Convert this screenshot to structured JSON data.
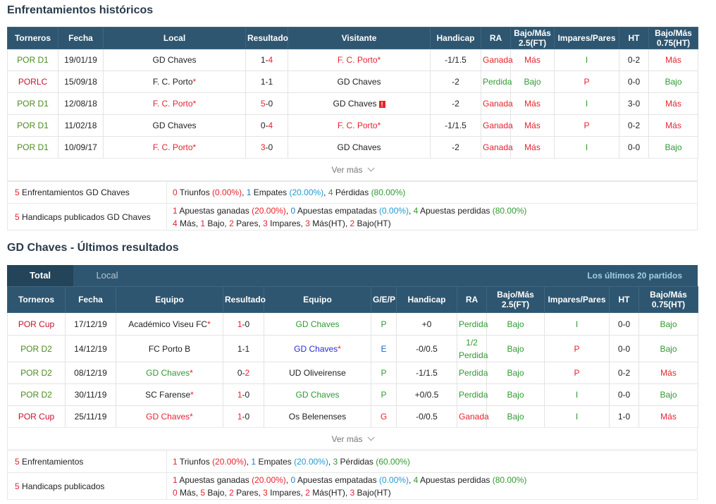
{
  "h2h": {
    "title": "Enfrentamientos históricos",
    "headers": [
      "Torneros",
      "Fecha",
      "Local",
      "Resultado",
      "Visitante",
      "Handicap",
      "RA",
      "Bajo/Más 2.5(FT)",
      "Impares/Pares",
      "HT",
      "Bajo/Más 0.75(HT)"
    ],
    "rows": [
      {
        "torneo": "POR D1",
        "fecha": "19/01/19",
        "local": "GD Chaves",
        "res_a": "1",
        "res_sep": "-",
        "res_b": "4",
        "visit": "F. C. Porto",
        "handicap": "-1/1.5",
        "ra": "Ganada",
        "ou": "Más",
        "oe": "I",
        "ht": "0-2",
        "ou_ht": "Más"
      },
      {
        "torneo": "PORLC",
        "fecha": "15/09/18",
        "local": "F. C. Porto",
        "res_a": "1",
        "res_sep": "-",
        "res_b": "1",
        "visit": "GD Chaves",
        "handicap": "-2",
        "ra": "Perdida",
        "ou": "Bajo",
        "oe": "P",
        "ht": "0-0",
        "ou_ht": "Bajo"
      },
      {
        "torneo": "POR D1",
        "fecha": "12/08/18",
        "local": "F. C. Porto",
        "res_a": "5",
        "res_sep": "-",
        "res_b": "0",
        "visit": "GD Chaves",
        "handicap": "-2",
        "ra": "Ganada",
        "ou": "Más",
        "oe": "I",
        "ht": "3-0",
        "ou_ht": "Más"
      },
      {
        "torneo": "POR D1",
        "fecha": "11/02/18",
        "local": "GD Chaves",
        "res_a": "0",
        "res_sep": "-",
        "res_b": "4",
        "visit": "F. C. Porto",
        "handicap": "-1/1.5",
        "ra": "Ganada",
        "ou": "Más",
        "oe": "P",
        "ht": "0-2",
        "ou_ht": "Más"
      },
      {
        "torneo": "POR D1",
        "fecha": "10/09/17",
        "local": "F. C. Porto",
        "res_a": "3",
        "res_sep": "-",
        "res_b": "0",
        "visit": "GD Chaves",
        "handicap": "-2",
        "ra": "Ganada",
        "ou": "Más",
        "oe": "I",
        "ht": "0-0",
        "ou_ht": "Bajo"
      }
    ],
    "more": "Ver más",
    "summary1": {
      "label_num": "5",
      "label": " Enfrentamientos GD Chaves",
      "n1": "0",
      "t1": " Triunfos ",
      "p1": "(0.00%)",
      "s1": ", ",
      "n2": "1",
      "t2": " Empates ",
      "p2": "(20.00%)",
      "s2": ", ",
      "n3": "4",
      "t3": " Pérdidas ",
      "p3": "(80.00%)"
    },
    "summary2": {
      "label_num": "5",
      "label": " Handicaps publicados GD Chaves",
      "n1": "1",
      "t1": " Apuestas ganadas ",
      "p1": "(20.00%)",
      "s1": ", ",
      "n2": "0",
      "t2": " Apuestas empatadas ",
      "p2": "(0.00%)",
      "s2": ", ",
      "n3": "4",
      "t3": " Apuestas perdidas ",
      "p3": "(80.00%)",
      "l2": [
        {
          "n": "4",
          "t": " Más, "
        },
        {
          "n": "1",
          "t": " Bajo, "
        },
        {
          "n": "2",
          "t": " Pares, "
        },
        {
          "n": "3",
          "t": " Impares, "
        },
        {
          "n": "3",
          "t": " Más(HT), "
        },
        {
          "n": "2",
          "t": " Bajo(HT)"
        }
      ]
    }
  },
  "recent": {
    "title": "GD Chaves - Últimos resultados",
    "tab_total": "Total",
    "tab_local": "Local",
    "tab_right": "Los últimos 20 partidos",
    "headers": [
      "Torneros",
      "Fecha",
      "Equipo",
      "Resultado",
      "Equipo",
      "G/E/P",
      "Handicap",
      "RA",
      "Bajo/Más 2.5(FT)",
      "Impares/Pares",
      "HT",
      "Bajo/Más 0.75(HT)"
    ],
    "rows": [
      {
        "torneo": "POR Cup",
        "fecha": "17/12/19",
        "eq1": "Académico Viseu FC",
        "res_a": "1",
        "res_sep": "-",
        "res_b": "0",
        "eq2": "GD Chaves",
        "gep": "P",
        "handicap": "+0",
        "ra": "Perdida",
        "ra2": "",
        "ou": "Bajo",
        "oe": "I",
        "ht": "0-0",
        "ou_ht": "Bajo"
      },
      {
        "torneo": "POR D2",
        "fecha": "14/12/19",
        "eq1": "FC Porto B",
        "res_a": "1",
        "res_sep": "-",
        "res_b": "1",
        "eq2": "GD Chaves",
        "gep": "E",
        "handicap": "-0/0.5",
        "ra": "1/2",
        "ra2": "Perdida",
        "ou": "Bajo",
        "oe": "P",
        "ht": "0-0",
        "ou_ht": "Bajo"
      },
      {
        "torneo": "POR D2",
        "fecha": "08/12/19",
        "eq1": "GD Chaves",
        "res_a": "0",
        "res_sep": "-",
        "res_b": "2",
        "eq2": "UD Oliveirense",
        "gep": "P",
        "handicap": "-1/1.5",
        "ra": "Perdida",
        "ra2": "",
        "ou": "Bajo",
        "oe": "P",
        "ht": "0-2",
        "ou_ht": "Más"
      },
      {
        "torneo": "POR D2",
        "fecha": "30/11/19",
        "eq1": "SC Farense",
        "res_a": "1",
        "res_sep": "-",
        "res_b": "0",
        "eq2": "GD Chaves",
        "gep": "P",
        "handicap": "+0/0.5",
        "ra": "Perdida",
        "ra2": "",
        "ou": "Bajo",
        "oe": "I",
        "ht": "0-0",
        "ou_ht": "Bajo"
      },
      {
        "torneo": "POR Cup",
        "fecha": "25/11/19",
        "eq1": "GD Chaves",
        "res_a": "1",
        "res_sep": "-",
        "res_b": "0",
        "eq2": "Os Belenenses",
        "gep": "G",
        "handicap": "-0/0.5",
        "ra": "Ganada",
        "ra2": "",
        "ou": "Bajo",
        "oe": "I",
        "ht": "1-0",
        "ou_ht": "Más"
      }
    ],
    "more": "Ver más",
    "summary1": {
      "label_num": "5",
      "label": " Enfrentamientos",
      "n1": "1",
      "t1": " Triunfos ",
      "p1": "(20.00%)",
      "s1": ", ",
      "n2": "1",
      "t2": " Empates ",
      "p2": "(20.00%)",
      "s2": ", ",
      "n3": "3",
      "t3": " Pérdidas ",
      "p3": "(60.00%)"
    },
    "summary2": {
      "label_num": "5",
      "label": " Handicaps publicados",
      "n1": "1",
      "t1": " Apuestas ganadas ",
      "p1": "(20.00%)",
      "s1": ", ",
      "n2": "0",
      "t2": " Apuestas empatadas ",
      "p2": "(0.00%)",
      "s2": ", ",
      "n3": "4",
      "t3": " Apuestas perdidas ",
      "p3": "(80.00%)",
      "l2": [
        {
          "n": "0",
          "t": " Más, "
        },
        {
          "n": "5",
          "t": " Bajo, "
        },
        {
          "n": "2",
          "t": " Pares, "
        },
        {
          "n": "3",
          "t": " Impares, "
        },
        {
          "n": "2",
          "t": " Más(HT), "
        },
        {
          "n": "3",
          "t": " Bajo(HT)"
        }
      ]
    }
  },
  "icons": {
    "star": "*",
    "warning": "!"
  },
  "colors": {
    "header": "#2f5670",
    "win": "#e8222e",
    "loss": "#2f9a30",
    "draw": "#1f63c3"
  }
}
